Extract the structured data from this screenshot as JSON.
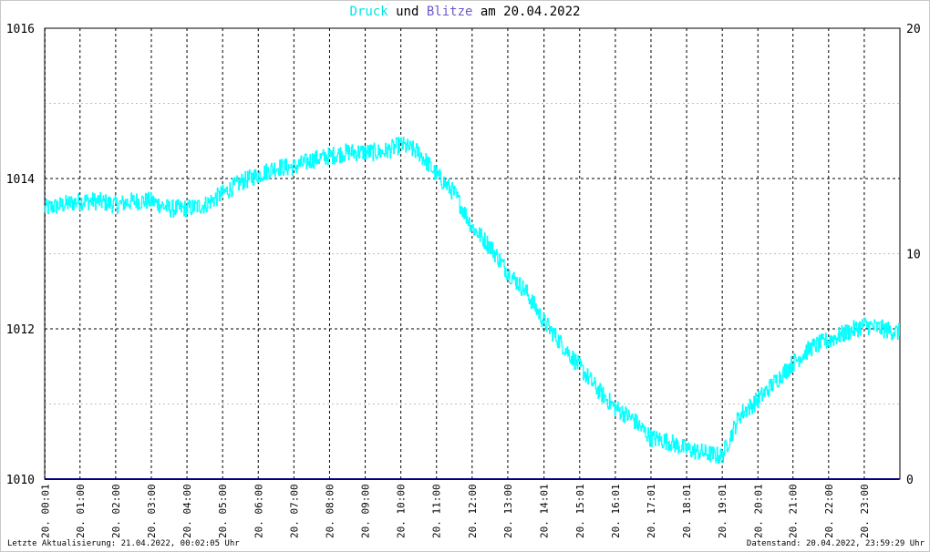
{
  "title": {
    "series_pressure": "Druck",
    "joiner": "und",
    "series_lightning": "Blitze",
    "date_prefix": "am",
    "date": "20.04.2022"
  },
  "colors": {
    "pressure": "#00ffff",
    "lightning": "#6a5acd",
    "baseline": "#000080",
    "grid_major": "#000000",
    "grid_minor": "#c0c0c0"
  },
  "footer": {
    "left": "Letzte Aktualisierung: 21.04.2022, 00:02:05 Uhr",
    "right": "Datenstand: 20.04.2022, 23:59:29 Uhr"
  },
  "chart_data": {
    "type": "line",
    "title": "Druck und Blitze am 20.04.2022",
    "ylim": [
      1010,
      1016
    ],
    "y2lim": [
      0,
      20
    ],
    "y_ticks": [
      "1016",
      "1014",
      "1012",
      "1010"
    ],
    "y2_ticks": [
      "20",
      "10",
      "0"
    ],
    "x_ticks": [
      "20. 00:01",
      "20. 01:00",
      "20. 02:00",
      "20. 03:00",
      "20. 04:00",
      "20. 05:00",
      "20. 06:00",
      "20. 07:00",
      "20. 08:00",
      "20. 09:00",
      "20. 10:00",
      "20. 11:00",
      "20. 12:00",
      "20. 13:00",
      "20. 14:01",
      "20. 15:01",
      "20. 16:01",
      "20. 17:01",
      "20. 18:01",
      "20. 19:01",
      "20. 20:01",
      "20. 21:00",
      "20. 22:00",
      "20. 23:00"
    ],
    "grid": true,
    "series": [
      {
        "name": "Druck",
        "axis": "left",
        "x": [
          "00:00",
          "00:30",
          "01:00",
          "01:30",
          "02:00",
          "02:30",
          "03:00",
          "03:30",
          "04:00",
          "04:30",
          "05:00",
          "05:30",
          "06:00",
          "06:30",
          "07:00",
          "07:30",
          "08:00",
          "08:30",
          "09:00",
          "09:30",
          "10:00",
          "10:30",
          "11:00",
          "11:30",
          "12:00",
          "12:30",
          "13:00",
          "13:30",
          "14:00",
          "14:30",
          "15:00",
          "15:30",
          "16:00",
          "16:30",
          "17:00",
          "17:30",
          "18:00",
          "18:30",
          "19:00",
          "19:30",
          "20:00",
          "20:30",
          "21:00",
          "21:30",
          "22:00",
          "22:30",
          "23:00",
          "23:30",
          "23:59"
        ],
        "values": [
          1013.6,
          1013.65,
          1013.7,
          1013.7,
          1013.65,
          1013.7,
          1013.7,
          1013.6,
          1013.6,
          1013.65,
          1013.8,
          1013.95,
          1014.05,
          1014.15,
          1014.15,
          1014.25,
          1014.3,
          1014.35,
          1014.35,
          1014.35,
          1014.45,
          1014.35,
          1014.05,
          1013.8,
          1013.35,
          1013.1,
          1012.75,
          1012.5,
          1012.1,
          1011.8,
          1011.5,
          1011.2,
          1010.95,
          1010.8,
          1010.55,
          1010.5,
          1010.4,
          1010.35,
          1010.3,
          1010.85,
          1011.05,
          1011.3,
          1011.55,
          1011.75,
          1011.85,
          1011.95,
          1012.05,
          1012.0,
          1011.95
        ]
      },
      {
        "name": "Blitze",
        "axis": "right",
        "x": [
          "00:00",
          "23:59"
        ],
        "values": [
          0,
          0
        ]
      }
    ]
  }
}
